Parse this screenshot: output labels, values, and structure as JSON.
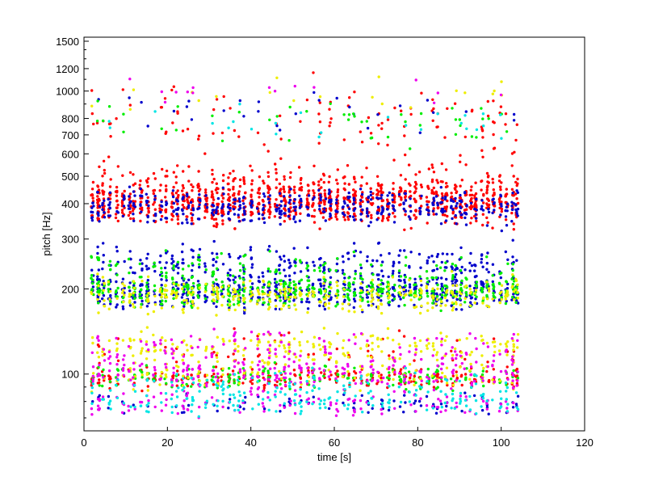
{
  "chart_data": {
    "type": "scatter",
    "title": "",
    "xlabel": "time [s]",
    "ylabel": "pitch [Hz]",
    "xlim": [
      0,
      120
    ],
    "ylim": [
      63,
      1550
    ],
    "yscale": "log",
    "grid": false,
    "legend": "none",
    "xticks": [
      0,
      20,
      40,
      60,
      80,
      100,
      120
    ],
    "xtick_labels": [
      "0",
      "20",
      "40",
      "60",
      "80",
      "100",
      "120"
    ],
    "yticks": [
      100,
      200,
      300,
      400,
      500,
      600,
      700,
      800,
      1000,
      1200,
      1500
    ],
    "ytick_labels": [
      "100",
      "200",
      "300",
      "400",
      "500",
      "600",
      "700",
      "800",
      "1000",
      "1200",
      "1500"
    ],
    "series": [
      {
        "name": "red",
        "color": "#ff0000",
        "bands": [
          {
            "center": 400,
            "spread": 0.1,
            "count": 900
          },
          {
            "center": 470,
            "spread": 0.12,
            "count": 260
          },
          {
            "center": 780,
            "spread": 0.18,
            "count": 110
          },
          {
            "center": 97,
            "spread": 0.05,
            "count": 260
          },
          {
            "center": 120,
            "spread": 0.1,
            "count": 60
          }
        ]
      },
      {
        "name": "blue",
        "color": "#0000cc",
        "bands": [
          {
            "center": 390,
            "spread": 0.08,
            "count": 480
          },
          {
            "center": 195,
            "spread": 0.08,
            "count": 600
          },
          {
            "center": 245,
            "spread": 0.1,
            "count": 280
          },
          {
            "center": 78,
            "spread": 0.06,
            "count": 90
          },
          {
            "center": 850,
            "spread": 0.1,
            "count": 30
          }
        ]
      },
      {
        "name": "green",
        "color": "#00ee00",
        "bands": [
          {
            "center": 195,
            "spread": 0.07,
            "count": 420
          },
          {
            "center": 230,
            "spread": 0.1,
            "count": 160
          },
          {
            "center": 97,
            "spread": 0.06,
            "count": 180
          },
          {
            "center": 780,
            "spread": 0.12,
            "count": 45
          }
        ]
      },
      {
        "name": "yellow",
        "color": "#eeee00",
        "bands": [
          {
            "center": 190,
            "spread": 0.08,
            "count": 360
          },
          {
            "center": 125,
            "spread": 0.08,
            "count": 220
          },
          {
            "center": 100,
            "spread": 0.07,
            "count": 120
          },
          {
            "center": 1000,
            "spread": 0.1,
            "count": 20
          }
        ]
      },
      {
        "name": "magenta",
        "color": "#ee00ee",
        "bands": [
          {
            "center": 100,
            "spread": 0.1,
            "count": 260
          },
          {
            "center": 125,
            "spread": 0.08,
            "count": 110
          },
          {
            "center": 78,
            "spread": 0.06,
            "count": 120
          },
          {
            "center": 1000,
            "spread": 0.1,
            "count": 15
          }
        ]
      },
      {
        "name": "cyan",
        "color": "#00e5e5",
        "bands": [
          {
            "center": 88,
            "spread": 0.1,
            "count": 150
          },
          {
            "center": 78,
            "spread": 0.05,
            "count": 80
          },
          {
            "center": 800,
            "spread": 0.12,
            "count": 25
          }
        ]
      }
    ],
    "time_range": [
      2,
      104
    ]
  }
}
